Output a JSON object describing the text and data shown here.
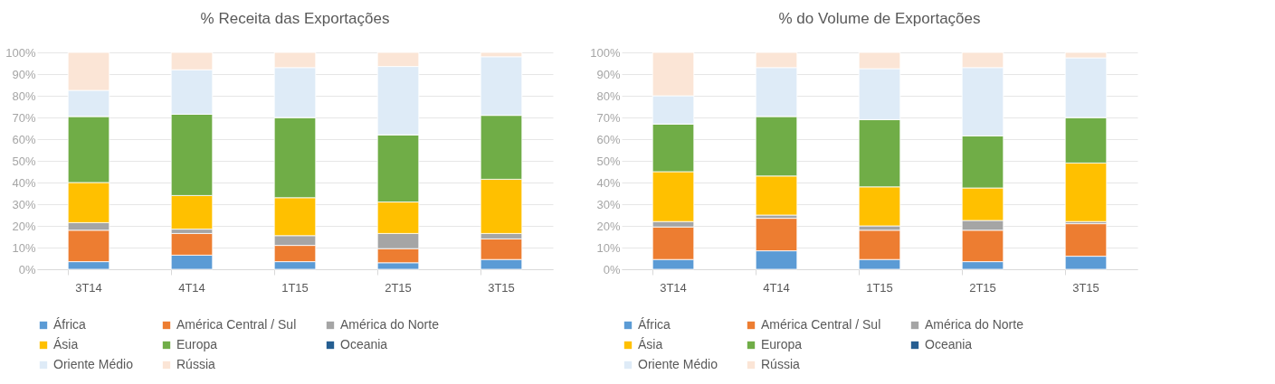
{
  "chart_data": [
    {
      "type": "bar",
      "title": "% Receita das Exportações",
      "stacked": true,
      "categories": [
        "3T14",
        "4T14",
        "1T15",
        "2T15",
        "3T15"
      ],
      "ylim": [
        0,
        100
      ],
      "yticks": [
        {
          "value": 0,
          "label": "0%"
        },
        {
          "value": 10,
          "label": "10%"
        },
        {
          "value": 20,
          "label": "20%"
        },
        {
          "value": 30,
          "label": "30%"
        },
        {
          "value": 40,
          "label": "40%"
        },
        {
          "value": 50,
          "label": "50%"
        },
        {
          "value": 60,
          "label": "60%"
        },
        {
          "value": 70,
          "label": "70%"
        },
        {
          "value": 80,
          "label": "80%"
        },
        {
          "value": 90,
          "label": "90%"
        },
        {
          "value": 100,
          "label": "100%"
        }
      ],
      "grid": "y",
      "legend": "bottom",
      "series": [
        {
          "name": "África",
          "color": "#5b9bd5",
          "values": [
            3.5,
            6.5,
            3.5,
            3,
            4.5
          ]
        },
        {
          "name": "América Central / Sul",
          "color": "#ed7d31",
          "values": [
            14.5,
            10,
            7.5,
            6.5,
            9.5
          ]
        },
        {
          "name": "América do Norte",
          "color": "#a5a5a5",
          "values": [
            3.5,
            2,
            4.5,
            7,
            2.5
          ]
        },
        {
          "name": "Ásia",
          "color": "#ffc000",
          "values": [
            18.5,
            15.5,
            17.5,
            14.5,
            25
          ]
        },
        {
          "name": "Europa",
          "color": "#70ad47",
          "values": [
            30.5,
            37.5,
            37,
            31,
            29.5
          ]
        },
        {
          "name": "Oceania",
          "color": "#255e91",
          "values": [
            0,
            0,
            0,
            0,
            0
          ]
        },
        {
          "name": "Oriente Médio",
          "color": "#deebf7",
          "values": [
            12,
            20.5,
            23,
            31.5,
            27
          ]
        },
        {
          "name": "Rússia",
          "color": "#fbe5d6",
          "values": [
            17.5,
            8,
            7,
            6.5,
            2
          ]
        }
      ]
    },
    {
      "type": "bar",
      "title": "% do Volume de Exportações",
      "stacked": true,
      "categories": [
        "3T14",
        "4T14",
        "1T15",
        "2T15",
        "3T15"
      ],
      "ylim": [
        0,
        100
      ],
      "yticks": [
        {
          "value": 0,
          "label": "0%"
        },
        {
          "value": 10,
          "label": "10%"
        },
        {
          "value": 20,
          "label": "20%"
        },
        {
          "value": 30,
          "label": "30%"
        },
        {
          "value": 40,
          "label": "40%"
        },
        {
          "value": 50,
          "label": "50%"
        },
        {
          "value": 60,
          "label": "60%"
        },
        {
          "value": 70,
          "label": "70%"
        },
        {
          "value": 80,
          "label": "80%"
        },
        {
          "value": 90,
          "label": "90%"
        },
        {
          "value": 100,
          "label": "100%"
        }
      ],
      "grid": "y",
      "legend": "bottom",
      "series": [
        {
          "name": "África",
          "color": "#5b9bd5",
          "values": [
            4.5,
            8.5,
            4.5,
            3.5,
            6
          ]
        },
        {
          "name": "América Central / Sul",
          "color": "#ed7d31",
          "values": [
            15,
            15,
            13.5,
            14.5,
            15
          ]
        },
        {
          "name": "América do Norte",
          "color": "#a5a5a5",
          "values": [
            2.5,
            1.5,
            2,
            4.5,
            1
          ]
        },
        {
          "name": "Ásia",
          "color": "#ffc000",
          "values": [
            23,
            18,
            18,
            15,
            27
          ]
        },
        {
          "name": "Europa",
          "color": "#70ad47",
          "values": [
            22,
            27.5,
            31,
            24,
            21
          ]
        },
        {
          "name": "Oceania",
          "color": "#255e91",
          "values": [
            0,
            0,
            0,
            0,
            0
          ]
        },
        {
          "name": "Oriente Médio",
          "color": "#deebf7",
          "values": [
            13,
            22.5,
            23.5,
            31.5,
            27.5
          ]
        },
        {
          "name": "Rússia",
          "color": "#fbe5d6",
          "values": [
            20,
            7,
            7.5,
            7,
            2.5
          ]
        }
      ]
    }
  ]
}
